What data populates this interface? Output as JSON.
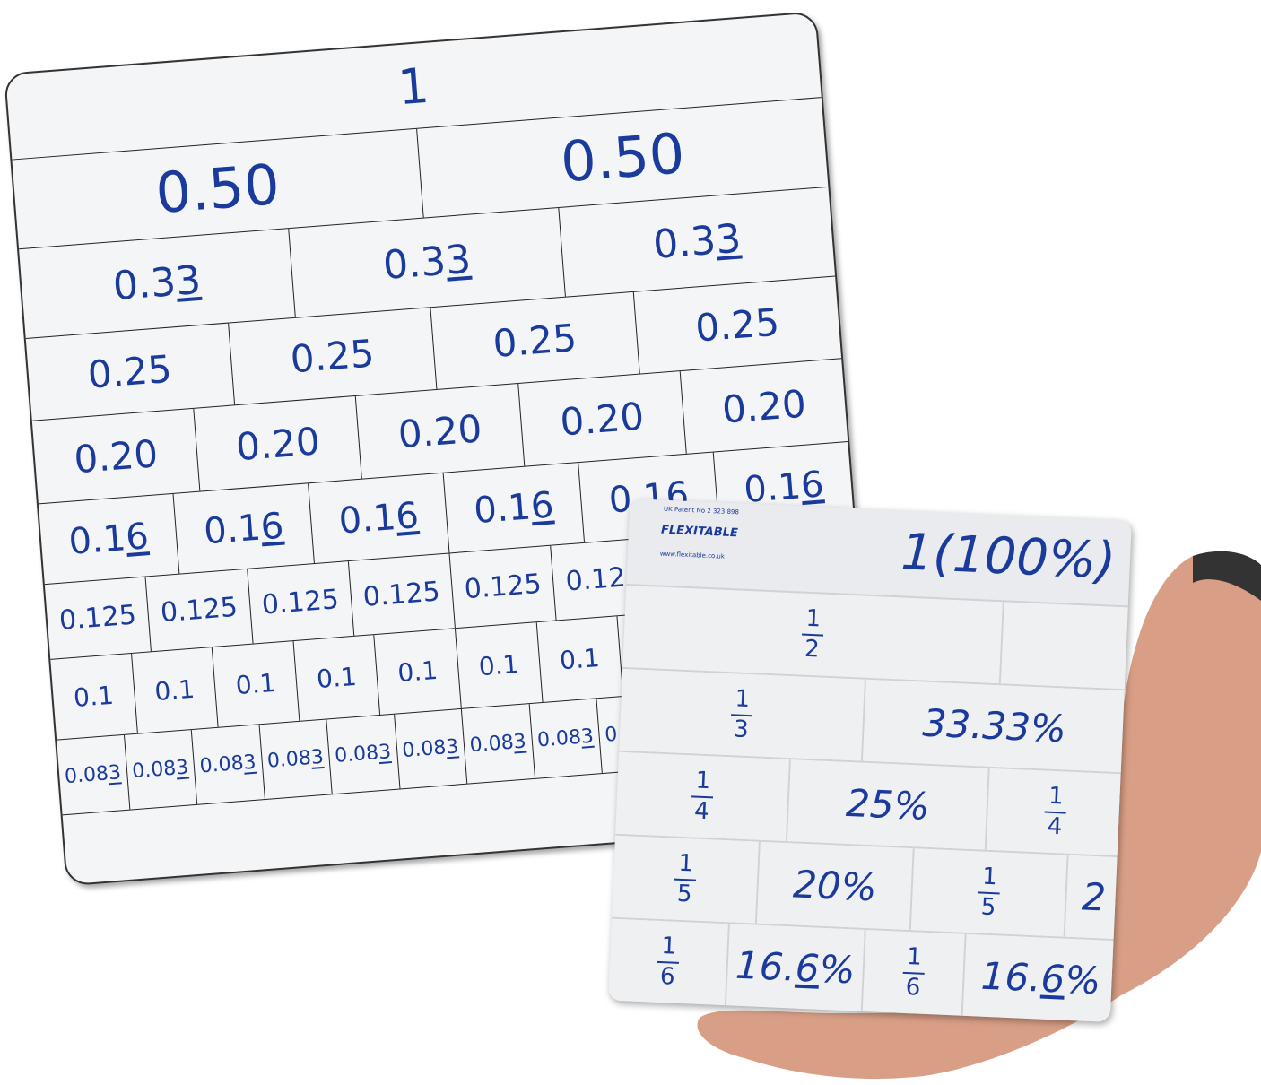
{
  "fraction_wall_board": {
    "rows": [
      {
        "cells": [
          "1"
        ],
        "recurring": false
      },
      {
        "cells": [
          "0.50",
          "0.50"
        ],
        "recurring": false
      },
      {
        "cells": [
          "0.33",
          "0.33",
          "0.33"
        ],
        "recurring": true
      },
      {
        "cells": [
          "0.25",
          "0.25",
          "0.25",
          "0.25"
        ],
        "recurring": false
      },
      {
        "cells": [
          "0.20",
          "0.20",
          "0.20",
          "0.20",
          "0.20"
        ],
        "recurring": false
      },
      {
        "cells": [
          "0.16",
          "0.16",
          "0.16",
          "0.16",
          "0.16",
          "0.16"
        ],
        "recurring": true
      },
      {
        "cells": [
          "0.125",
          "0.125",
          "0.125",
          "0.125",
          "0.125",
          "0.125",
          "0.125",
          "0.125"
        ],
        "recurring": false
      },
      {
        "cells": [
          "0.1",
          "0.1",
          "0.1",
          "0.1",
          "0.1",
          "0.1",
          "0.1",
          "0.1",
          "0.1",
          "0.1"
        ],
        "recurring": false
      },
      {
        "cells": [
          "0.083",
          "0.083",
          "0.083",
          "0.083",
          "0.083",
          "0.083",
          "0.083",
          "0.083",
          "0.083",
          "0.083",
          "0.083",
          "0.083"
        ],
        "recurring": true
      }
    ],
    "text_color": "#1a3a9c"
  },
  "flexitable_card": {
    "patent": "UK Patent No 2 323 898",
    "brand": "FLEXITABLE",
    "website": "www.flexitable.co.uk",
    "whole": "1(100%)",
    "rows": [
      [
        {
          "n": "1",
          "d": "2"
        },
        {
          "t": ""
        }
      ],
      [
        {
          "n": "1",
          "d": "3"
        },
        {
          "t": "33.33%"
        }
      ],
      [
        {
          "n": "1",
          "d": "4"
        },
        {
          "t": "25%"
        },
        {
          "n": "1",
          "d": "4"
        }
      ],
      [
        {
          "n": "1",
          "d": "5"
        },
        {
          "t": "20%"
        },
        {
          "n": "1",
          "d": "5"
        },
        {
          "t": "2"
        }
      ],
      [
        {
          "n": "1",
          "d": "6"
        },
        {
          "t": "16.6%",
          "rec": true
        },
        {
          "n": "1",
          "d": "6"
        },
        {
          "t": "16.6%",
          "rec": true
        }
      ]
    ]
  }
}
